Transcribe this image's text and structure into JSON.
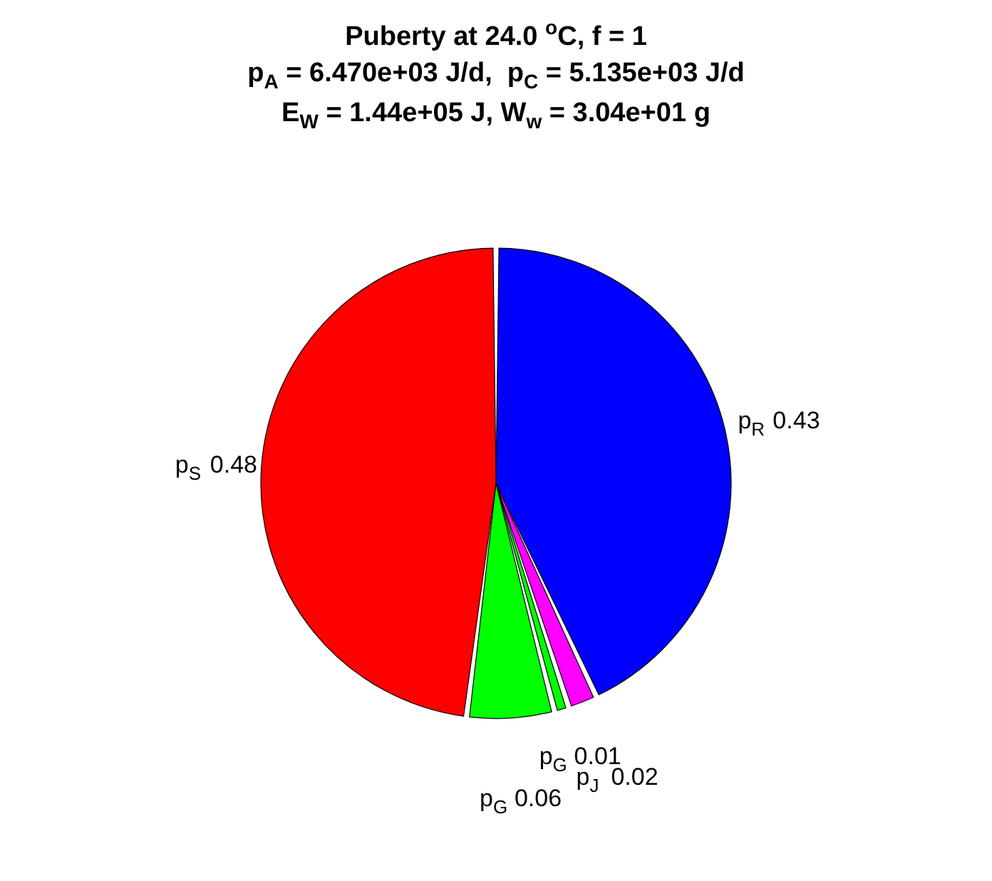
{
  "chart_data": {
    "type": "pie",
    "title": "Puberty at 24.0 $^{o}$C, f = 1",
    "subtitle": "p$_{A}$ = 6.470e+03 J/d,  p$_{C}$ = 5.135e+03 J/d\nE$_{W}$ = 1.44e+05 J, W$_{w}$ = 3.04e+01 g",
    "categories": [
      "p$_{R}$",
      "p$_{J}$",
      "p$_{G}$",
      "p$_{G}$",
      "p$_{S}$"
    ],
    "values": [
      0.43,
      0.02,
      0.01,
      0.06,
      0.48
    ],
    "colors": [
      "#0000ff",
      "#ff00ff",
      "#00ff00",
      "#00ff00",
      "#ff0000"
    ],
    "data_labels": true
  }
}
